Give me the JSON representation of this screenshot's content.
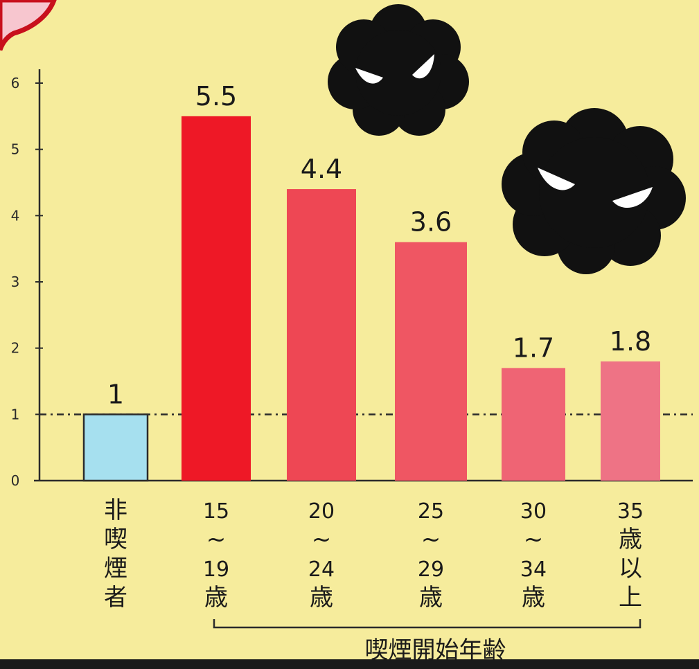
{
  "chart_data": {
    "type": "bar",
    "categories": [
      [
        "非",
        "喫",
        "煙",
        "者"
      ],
      [
        "15",
        "~",
        "19",
        "歳"
      ],
      [
        "20",
        "~",
        "24",
        "歳"
      ],
      [
        "25",
        "~",
        "29",
        "歳"
      ],
      [
        "30",
        "~",
        "34",
        "歳"
      ],
      [
        "35",
        "歳",
        "以",
        "上"
      ]
    ],
    "values": [
      1,
      5.5,
      4.4,
      3.6,
      1.7,
      1.8
    ],
    "value_labels": [
      "1",
      "5.5",
      "4.4",
      "3.6",
      "1.7",
      "1.8"
    ],
    "bar_colors": [
      "#a6e0ef",
      "#ee1826",
      "#ee4754",
      "#ef5663",
      "#ef6474",
      "#ee7385"
    ],
    "y_ticks": [
      0,
      1,
      2,
      3,
      4,
      5,
      6
    ],
    "ylim": [
      0,
      6
    ],
    "reference_line": 1,
    "group_label": "喫煙開始年齢",
    "grid": false
  },
  "colors": {
    "background": "#f6ec9c",
    "axis": "#2b2b2b",
    "smoke_cloud": "#111111",
    "deco_pink": "#f7c6cf",
    "deco_red": "#c8101c"
  }
}
